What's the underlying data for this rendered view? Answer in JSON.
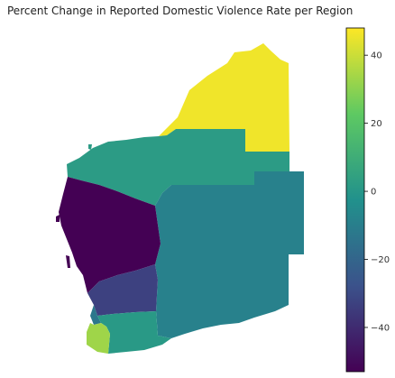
{
  "title": "Percent Change in Reported Domestic Violence Rate per Region",
  "colorbar": {
    "min": -53,
    "max": 48,
    "ticks": [
      {
        "value": 40,
        "label": "40"
      },
      {
        "value": 20,
        "label": "20"
      },
      {
        "value": 0,
        "label": "0"
      },
      {
        "value": -20,
        "label": "−20"
      },
      {
        "value": -40,
        "label": "−40"
      }
    ],
    "stops": [
      "#440154",
      "#3b528b",
      "#21918c",
      "#5ec962",
      "#fde725"
    ]
  },
  "regions": [
    {
      "id": "kimberley",
      "value": 46
    },
    {
      "id": "pilbara",
      "value": 2
    },
    {
      "id": "goldfields-esperance",
      "value": -9
    },
    {
      "id": "midwest-gascoyne",
      "value": -53
    },
    {
      "id": "wheatbelt",
      "value": -33
    },
    {
      "id": "peel",
      "value": -13
    },
    {
      "id": "great-southern",
      "value": 1
    },
    {
      "id": "southwest",
      "value": 33
    }
  ]
}
